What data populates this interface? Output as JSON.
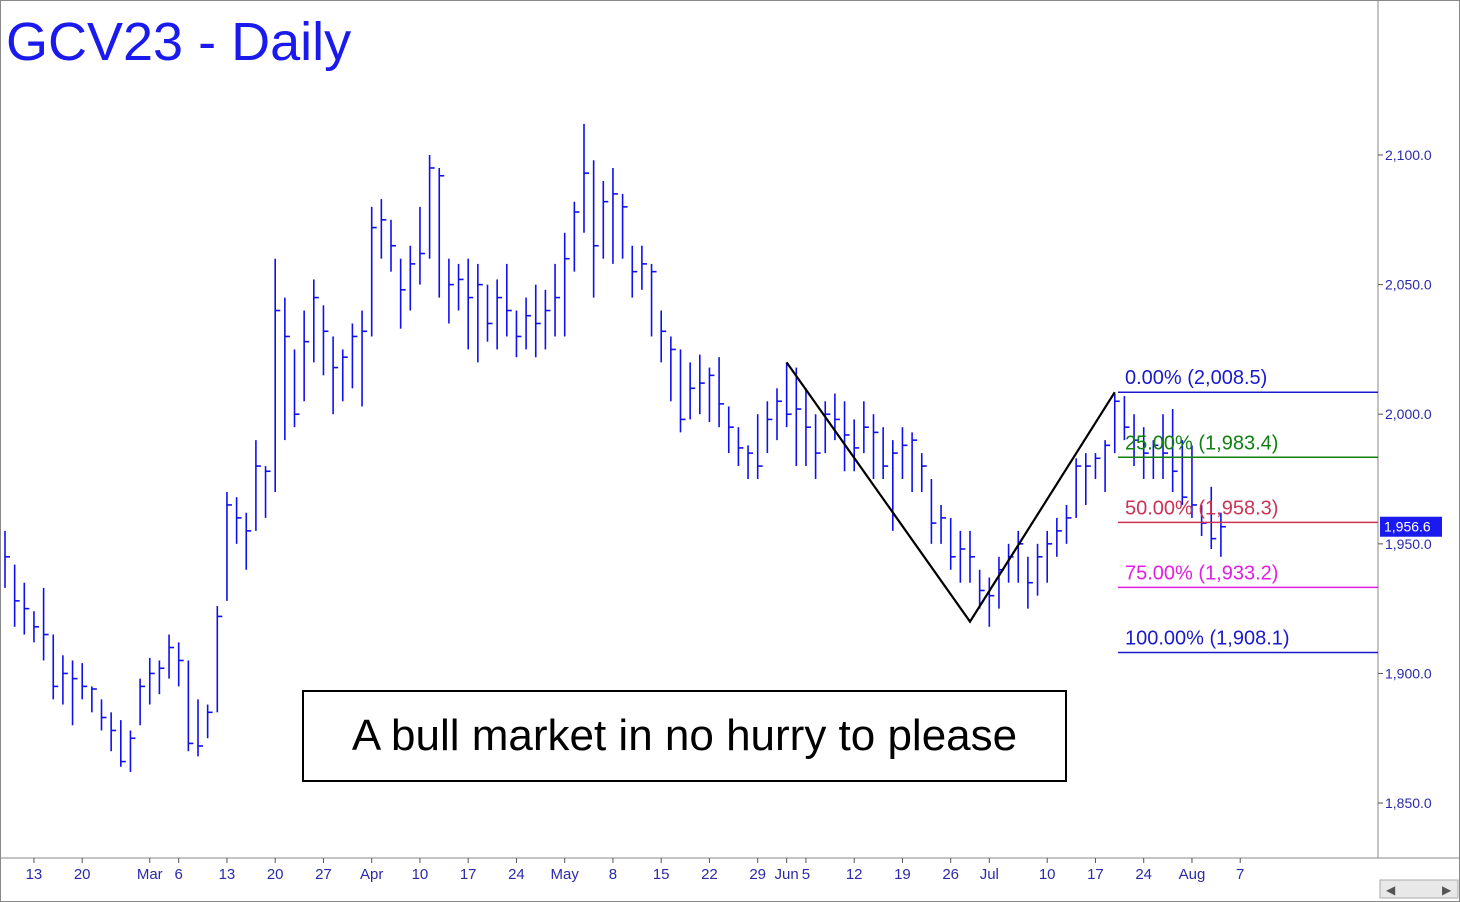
{
  "chart_data": {
    "type": "ohlc",
    "title": "GCV23 - Daily",
    "annotation": "A bull market in no hurry to please",
    "color": "#1010ee",
    "categories": [
      null,
      null,
      null,
      "13",
      null,
      null,
      null,
      null,
      "20",
      null,
      null,
      null,
      null,
      null,
      null,
      "Mar",
      null,
      null,
      "6",
      null,
      null,
      null,
      null,
      "13",
      null,
      null,
      null,
      null,
      "20",
      null,
      null,
      null,
      null,
      "27",
      null,
      null,
      null,
      null,
      "Apr",
      null,
      null,
      null,
      null,
      "10",
      null,
      null,
      null,
      null,
      "17",
      null,
      null,
      null,
      null,
      "24",
      null,
      null,
      null,
      null,
      "May",
      null,
      null,
      null,
      null,
      "8",
      null,
      null,
      null,
      null,
      "15",
      null,
      null,
      null,
      null,
      "22",
      null,
      null,
      null,
      null,
      "29",
      null,
      null,
      "Jun",
      null,
      "5",
      null,
      null,
      null,
      null,
      "12",
      null,
      null,
      null,
      null,
      "19",
      null,
      null,
      null,
      null,
      "26",
      null,
      null,
      null,
      "Jul",
      null,
      null,
      null,
      null,
      null,
      "10",
      null,
      null,
      null,
      null,
      "17",
      null,
      null,
      null,
      null,
      "24",
      null,
      null,
      null,
      null,
      "Aug",
      null,
      null,
      null,
      null,
      "7"
    ],
    "high": [
      1955,
      1942,
      1935,
      1924,
      1933,
      1915,
      1907,
      1905,
      1904,
      1895,
      1890,
      1885,
      1882,
      1878,
      1898,
      1906,
      1905,
      1915,
      1912,
      1905,
      1890,
      1888,
      1926,
      1970,
      1968,
      1962,
      1990,
      1980,
      2060,
      2045,
      2025,
      2040,
      2052,
      2042,
      2030,
      2025,
      2035,
      2040,
      2080,
      2083,
      2075,
      2060,
      2065,
      2080,
      2100,
      2095,
      2060,
      2058,
      2060,
      2058,
      2050,
      2052,
      2058,
      2040,
      2045,
      2050,
      2048,
      2058,
      2070,
      2082,
      2112,
      2098,
      2090,
      2095,
      2085,
      2065,
      2065,
      2058,
      2040,
      2030,
      2025,
      2020,
      2023,
      2018,
      2022,
      2003,
      1995,
      1988,
      2000,
      2005,
      2010,
      2020,
      2018,
      2010,
      2000,
      2005,
      2008,
      2005,
      1998,
      2005,
      2000,
      1995,
      1990,
      1995,
      1993,
      1985,
      1975,
      1965,
      1960,
      1955,
      1955,
      1940,
      1937,
      1945,
      1950,
      1955,
      1945,
      1950,
      1955,
      1960,
      1965,
      1983,
      1985,
      1985,
      1990,
      2008,
      2007,
      2000,
      1995,
      1990,
      2000,
      2002,
      1990,
      1988,
      1965,
      1972,
      1962,
      null,
      null
    ],
    "low": [
      1933,
      1918,
      1915,
      1912,
      1905,
      1890,
      1888,
      1880,
      1890,
      1885,
      1878,
      1870,
      1864,
      1862,
      1880,
      1888,
      1892,
      1898,
      1895,
      1870,
      1868,
      1875,
      1885,
      1928,
      1950,
      1940,
      1955,
      1960,
      1970,
      1990,
      1995,
      2005,
      2020,
      2015,
      2000,
      2005,
      2010,
      2003,
      2030,
      2060,
      2055,
      2033,
      2040,
      2050,
      2060,
      2045,
      2035,
      2040,
      2025,
      2020,
      2028,
      2025,
      2030,
      2022,
      2025,
      2022,
      2025,
      2030,
      2030,
      2055,
      2070,
      2045,
      2060,
      2058,
      2060,
      2045,
      2048,
      2030,
      2020,
      2005,
      1993,
      1998,
      2000,
      1997,
      1995,
      1985,
      1980,
      1975,
      1975,
      1985,
      1990,
      1995,
      1980,
      1980,
      1975,
      1985,
      1990,
      1978,
      1978,
      1985,
      1975,
      1975,
      1955,
      1975,
      1970,
      1970,
      1950,
      1950,
      1940,
      1935,
      1935,
      1925,
      1918,
      1925,
      1935,
      1935,
      1925,
      1930,
      1935,
      1945,
      1950,
      1960,
      1965,
      1975,
      1970,
      1985,
      1990,
      1980,
      1975,
      1975,
      1975,
      1970,
      1965,
      1960,
      1953,
      1948,
      1945,
      null,
      null
    ],
    "close": [
      1945,
      1928,
      1925,
      1918,
      1915,
      1895,
      1900,
      1898,
      1895,
      1894,
      1883,
      1878,
      1866,
      1875,
      1895,
      1900,
      1902,
      1910,
      1905,
      1873,
      1872,
      1885,
      1922,
      1965,
      1960,
      1955,
      1980,
      1978,
      2040,
      2030,
      2000,
      2028,
      2045,
      2032,
      2018,
      2022,
      2030,
      2032,
      2072,
      2075,
      2065,
      2048,
      2058,
      2062,
      2095,
      2092,
      2050,
      2052,
      2045,
      2050,
      2035,
      2045,
      2040,
      2030,
      2038,
      2035,
      2040,
      2045,
      2060,
      2078,
      2093,
      2065,
      2082,
      2085,
      2080,
      2055,
      2058,
      2055,
      2032,
      2025,
      1998,
      2010,
      2012,
      2015,
      2004,
      1995,
      1987,
      1985,
      1980,
      1998,
      2005,
      2000,
      2002,
      1995,
      1985,
      2000,
      1998,
      1992,
      1987,
      1995,
      1993,
      1980,
      1985,
      1988,
      1990,
      1980,
      1958,
      1960,
      1945,
      1948,
      1945,
      1932,
      1930,
      1940,
      1945,
      1950,
      1935,
      1945,
      1950,
      1955,
      1960,
      1980,
      1980,
      1983,
      1988,
      2005,
      1995,
      1990,
      1985,
      1988,
      1985,
      1978,
      1968,
      1965,
      1958,
      1952,
      1956.6,
      null,
      null
    ],
    "last_price": {
      "value": 1956.6,
      "label": "1,956.6"
    },
    "pattern": {
      "x": [
        81,
        100,
        115
      ],
      "values": [
        2020,
        1920,
        2008.5
      ]
    },
    "fib_levels": [
      {
        "value": 2008.5,
        "label": "0.00% (2,008.5)",
        "color": "#1a1acc"
      },
      {
        "value": 1983.4,
        "label": "25.00% (1,983.4)",
        "color": "#108010"
      },
      {
        "value": 1958.3,
        "label": "50.00% (1,958.3)",
        "color": "#cc3355"
      },
      {
        "value": 1933.2,
        "label": "75.00% (1,933.2)",
        "color": "#e020e0"
      },
      {
        "value": 1908.1,
        "label": "100.00% (1,908.1)",
        "color": "#1a1acc"
      }
    ],
    "ylim": [
      1828.8,
      2159.8
    ],
    "yticks": [
      {
        "value": 1850,
        "label": "1,850.0"
      },
      {
        "value": 1900,
        "label": "1,900.0"
      },
      {
        "value": 1950,
        "label": "1,950.0"
      },
      {
        "value": 2000,
        "label": "2,000.0"
      },
      {
        "value": 2050,
        "label": "2,050.0"
      },
      {
        "value": 2100,
        "label": "2,100.0"
      }
    ]
  }
}
